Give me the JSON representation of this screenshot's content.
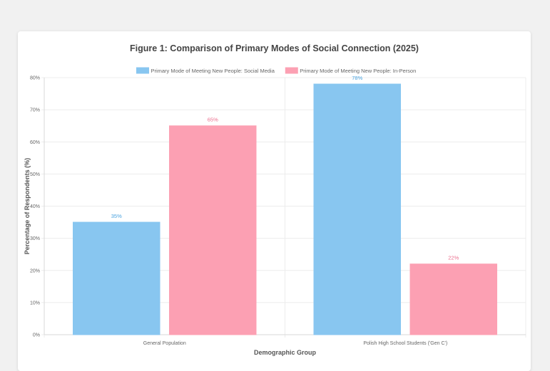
{
  "chart_data": {
    "type": "bar",
    "title": "Figure 1: Comparison of Primary Modes of Social Connection (2025)",
    "categories": [
      "General Population",
      "Polish High School Students ('Gen C')"
    ],
    "series": [
      {
        "name": "Primary Mode of Meeting New People: Social Media",
        "values": [
          35,
          78
        ],
        "color": "#88c6f0",
        "label_color": "#4aa3df"
      },
      {
        "name": "Primary Mode of Meeting New People: In-Person",
        "values": [
          65,
          22
        ],
        "color": "#fca0b3",
        "label_color": "#ec6f8e"
      }
    ],
    "data_labels": [
      [
        "35%",
        "78%"
      ],
      [
        "65%",
        "22%"
      ]
    ],
    "xlabel": "Demographic Group",
    "ylabel": "Percentage of Respondents (%)",
    "ylim": [
      0,
      80
    ],
    "yticks": [
      "0%",
      "10%",
      "20%",
      "30%",
      "40%",
      "50%",
      "60%",
      "70%",
      "80%"
    ],
    "legend_position": "top",
    "grid": true
  }
}
